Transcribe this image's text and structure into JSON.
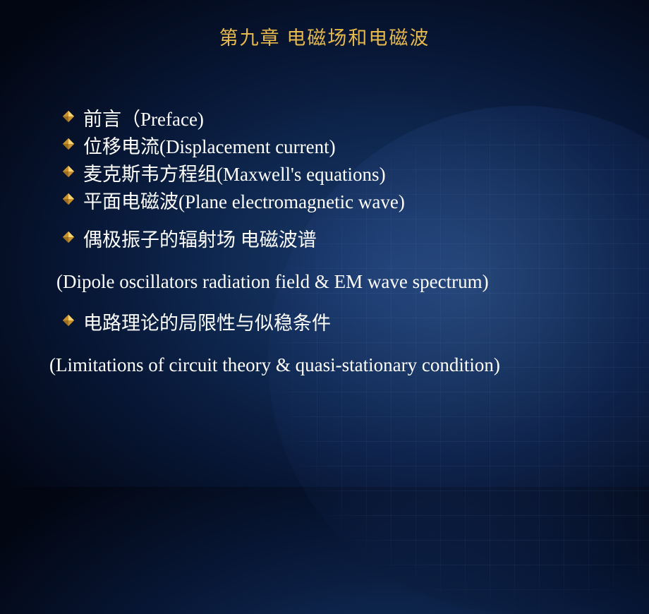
{
  "colors": {
    "title": "#e6b94a",
    "bullet_fill": "#c7902e",
    "bullet_highlight": "#ffe07a",
    "text": "#ffffff"
  },
  "title": "第九章  电磁场和电磁波",
  "items": [
    {
      "main": "前言（Preface)"
    },
    {
      "main": "位移电流(Displacement current)"
    },
    {
      "main": "麦克斯韦方程组(Maxwell's equations)"
    },
    {
      "main": "平面电磁波(Plane electromagnetic wave)"
    },
    {
      "main": "偶极振子的辐射场  电磁波谱",
      "sub": "(Dipole oscillators radiation field & EM wave spectrum)"
    },
    {
      "main": "电路理论的局限性与似稳条件",
      "sub": "(Limitations of circuit theory & quasi-stationary condition)"
    }
  ]
}
